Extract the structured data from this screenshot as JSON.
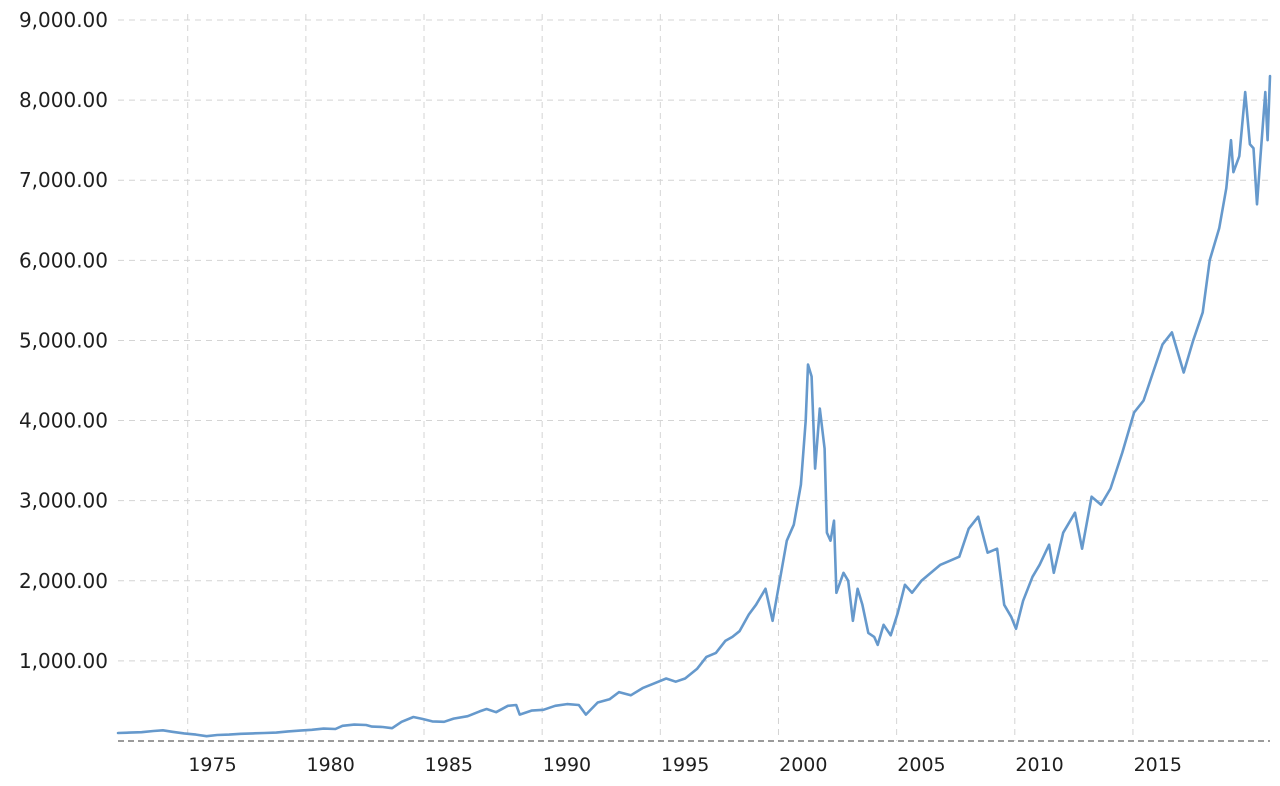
{
  "chart_data": {
    "type": "line",
    "title": "",
    "xlabel": "",
    "ylabel": "",
    "ylim": [
      0,
      9000
    ],
    "xlim": [
      1971.0,
      2018.4
    ],
    "y_ticks": [
      {
        "value": 1000,
        "label": "1,000.00"
      },
      {
        "value": 2000,
        "label": "2,000.00"
      },
      {
        "value": 3000,
        "label": "3,000.00"
      },
      {
        "value": 4000,
        "label": "4,000.00"
      },
      {
        "value": 5000,
        "label": "5,000.00"
      },
      {
        "value": 6000,
        "label": "6,000.00"
      },
      {
        "value": 7000,
        "label": "7,000.00"
      },
      {
        "value": 8000,
        "label": "8,000.00"
      },
      {
        "value": 9000,
        "label": "9,000.00"
      }
    ],
    "x_ticks": [
      {
        "value": 1975,
        "label": "1975"
      },
      {
        "value": 1980,
        "label": "1980"
      },
      {
        "value": 1985,
        "label": "1985"
      },
      {
        "value": 1990,
        "label": "1990"
      },
      {
        "value": 1995,
        "label": "1995"
      },
      {
        "value": 2000,
        "label": "2000"
      },
      {
        "value": 2005,
        "label": "2005"
      },
      {
        "value": 2010,
        "label": "2010"
      },
      {
        "value": 2015,
        "label": "2015"
      }
    ],
    "x_gridlines": [
      1973.95,
      1978.95,
      1983.95,
      1988.95,
      1993.95,
      1998.95,
      2003.95,
      2008.95,
      2013.95
    ],
    "grid": true,
    "line_color": "#6699cc",
    "series": [
      {
        "name": "",
        "points": [
          [
            1971.0,
            100
          ],
          [
            1971.5,
            105
          ],
          [
            1972.0,
            110
          ],
          [
            1972.5,
            125
          ],
          [
            1972.9,
            133
          ],
          [
            1973.3,
            115
          ],
          [
            1973.8,
            95
          ],
          [
            1974.3,
            80
          ],
          [
            1974.75,
            60
          ],
          [
            1975.2,
            75
          ],
          [
            1975.7,
            80
          ],
          [
            1976.2,
            90
          ],
          [
            1976.7,
            95
          ],
          [
            1977.2,
            100
          ],
          [
            1977.7,
            105
          ],
          [
            1978.2,
            120
          ],
          [
            1978.7,
            130
          ],
          [
            1979.2,
            140
          ],
          [
            1979.7,
            155
          ],
          [
            1980.2,
            150
          ],
          [
            1980.5,
            190
          ],
          [
            1981.0,
            205
          ],
          [
            1981.5,
            200
          ],
          [
            1981.75,
            180
          ],
          [
            1982.2,
            175
          ],
          [
            1982.6,
            160
          ],
          [
            1983.0,
            240
          ],
          [
            1983.5,
            300
          ],
          [
            1983.9,
            275
          ],
          [
            1984.3,
            245
          ],
          [
            1984.8,
            240
          ],
          [
            1985.2,
            280
          ],
          [
            1985.8,
            310
          ],
          [
            1986.3,
            370
          ],
          [
            1986.6,
            400
          ],
          [
            1987.0,
            360
          ],
          [
            1987.5,
            440
          ],
          [
            1987.85,
            450
          ],
          [
            1988.0,
            330
          ],
          [
            1988.5,
            380
          ],
          [
            1989.0,
            390
          ],
          [
            1989.5,
            440
          ],
          [
            1990.0,
            460
          ],
          [
            1990.5,
            450
          ],
          [
            1990.8,
            330
          ],
          [
            1991.3,
            480
          ],
          [
            1991.8,
            520
          ],
          [
            1992.2,
            610
          ],
          [
            1992.7,
            570
          ],
          [
            1993.2,
            660
          ],
          [
            1993.7,
            720
          ],
          [
            1994.2,
            780
          ],
          [
            1994.6,
            740
          ],
          [
            1995.0,
            780
          ],
          [
            1995.5,
            900
          ],
          [
            1995.9,
            1050
          ],
          [
            1996.3,
            1100
          ],
          [
            1996.7,
            1250
          ],
          [
            1997.0,
            1300
          ],
          [
            1997.3,
            1370
          ],
          [
            1997.7,
            1580
          ],
          [
            1998.0,
            1700
          ],
          [
            1998.4,
            1900
          ],
          [
            1998.7,
            1500
          ],
          [
            1999.0,
            2000
          ],
          [
            1999.3,
            2500
          ],
          [
            1999.6,
            2700
          ],
          [
            1999.9,
            3200
          ],
          [
            2000.1,
            4000
          ],
          [
            2000.2,
            4700
          ],
          [
            2000.35,
            4550
          ],
          [
            2000.5,
            3400
          ],
          [
            2000.7,
            4150
          ],
          [
            2000.9,
            3650
          ],
          [
            2001.0,
            2600
          ],
          [
            2001.15,
            2500
          ],
          [
            2001.3,
            2750
          ],
          [
            2001.4,
            1850
          ],
          [
            2001.7,
            2100
          ],
          [
            2001.9,
            2000
          ],
          [
            2002.1,
            1500
          ],
          [
            2002.3,
            1900
          ],
          [
            2002.5,
            1700
          ],
          [
            2002.75,
            1350
          ],
          [
            2003.0,
            1300
          ],
          [
            2003.15,
            1200
          ],
          [
            2003.4,
            1450
          ],
          [
            2003.7,
            1320
          ],
          [
            2004.0,
            1600
          ],
          [
            2004.3,
            1950
          ],
          [
            2004.6,
            1850
          ],
          [
            2005.0,
            2000
          ],
          [
            2005.4,
            2100
          ],
          [
            2005.8,
            2200
          ],
          [
            2006.2,
            2250
          ],
          [
            2006.6,
            2300
          ],
          [
            2007.0,
            2650
          ],
          [
            2007.4,
            2800
          ],
          [
            2007.8,
            2350
          ],
          [
            2008.2,
            2400
          ],
          [
            2008.5,
            1700
          ],
          [
            2008.8,
            1550
          ],
          [
            2009.0,
            1400
          ],
          [
            2009.3,
            1750
          ],
          [
            2009.7,
            2050
          ],
          [
            2010.0,
            2200
          ],
          [
            2010.4,
            2450
          ],
          [
            2010.6,
            2100
          ],
          [
            2011.0,
            2600
          ],
          [
            2011.5,
            2850
          ],
          [
            2011.8,
            2400
          ],
          [
            2012.2,
            3050
          ],
          [
            2012.6,
            2950
          ],
          [
            2013.0,
            3150
          ],
          [
            2013.5,
            3600
          ],
          [
            2014.0,
            4100
          ],
          [
            2014.4,
            4250
          ],
          [
            2014.8,
            4600
          ],
          [
            2015.2,
            4950
          ],
          [
            2015.6,
            5100
          ],
          [
            2015.9,
            4800
          ],
          [
            2016.1,
            4600
          ],
          [
            2016.5,
            5000
          ],
          [
            2016.9,
            5350
          ],
          [
            2017.2,
            6000
          ],
          [
            2017.6,
            6400
          ],
          [
            2017.9,
            6900
          ],
          [
            2018.1,
            7500
          ],
          [
            2018.2,
            7100
          ],
          [
            2018.45,
            7300
          ],
          [
            2018.7,
            8100
          ],
          [
            2018.9,
            7450
          ],
          [
            2019.05,
            7400
          ],
          [
            2019.2,
            6700
          ],
          [
            2019.35,
            7300
          ],
          [
            2019.55,
            8100
          ],
          [
            2019.65,
            7500
          ],
          [
            2019.75,
            8300
          ]
        ]
      }
    ]
  }
}
